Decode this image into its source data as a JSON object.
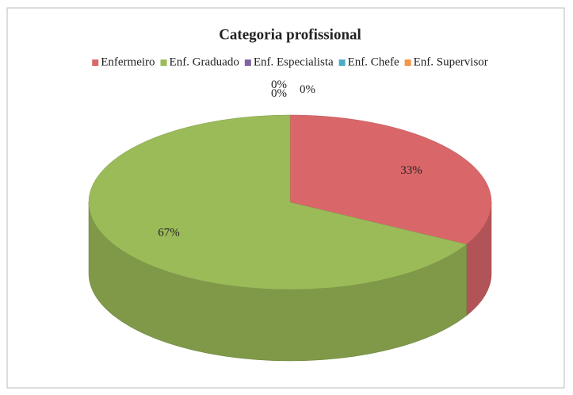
{
  "chart_data": {
    "type": "pie",
    "title": "Categoria profissional",
    "categories": [
      "Enfermeiro",
      "Enf. Graduado",
      "Enf. Especialista",
      "Enf. Chefe",
      "Enf. Supervisor"
    ],
    "values": [
      33,
      67,
      0,
      0,
      0
    ],
    "value_labels": [
      "33%",
      "67%",
      "0%",
      "0%",
      "0%"
    ],
    "colors": [
      "#d9676a",
      "#9bbb59",
      "#8064a2",
      "#4bacc6",
      "#f79646"
    ],
    "legend": "top"
  }
}
